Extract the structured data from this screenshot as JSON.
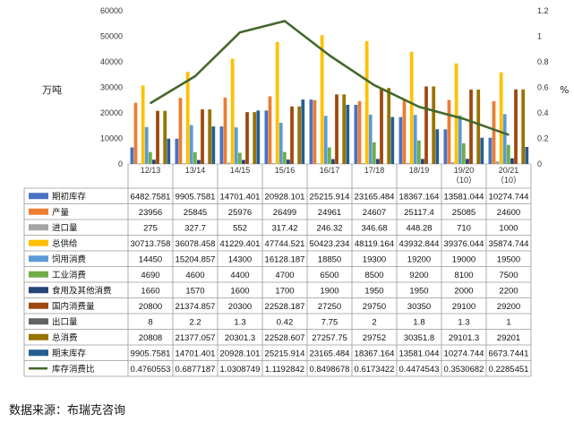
{
  "chart_data": {
    "type": "bar",
    "title": "",
    "units": {
      "left": "万吨",
      "right": "%"
    },
    "categories": [
      "12/13",
      "13/14",
      "14/15",
      "15/16",
      "16/17",
      "17/18",
      "18/19",
      "19/20\n（10）",
      "20/21\n（10）"
    ],
    "y_left": {
      "min": 0,
      "max": 60000,
      "ticks": [
        0,
        10000,
        20000,
        30000,
        40000,
        50000,
        60000
      ]
    },
    "y_right": {
      "min": 0,
      "max": 1.2,
      "ticks": [
        "0",
        "0.2",
        "0.4",
        "0.6",
        "0.8",
        "1",
        "1.2"
      ]
    },
    "grid": false,
    "bar_series": [
      {
        "name": "期初库存",
        "color": "#4a72c4",
        "values": [
          6482.7581,
          9905.7581,
          14701.401,
          20928.101,
          25215.914,
          23165.484,
          18367.164,
          13581.044,
          10274.744
        ],
        "labels": [
          "6482.7581",
          "9905.7581",
          "14701.401",
          "20928.101",
          "25215.914",
          "23165.484",
          "18367.164",
          "13581.044",
          "10274.744"
        ]
      },
      {
        "name": "产量",
        "color": "#ed7d31",
        "values": [
          23956,
          25845,
          25976,
          26499,
          24961,
          24607,
          25117.4,
          25085,
          24600
        ],
        "labels": [
          "23956",
          "25845",
          "25976",
          "26499",
          "24961",
          "24607",
          "25117.4",
          "25085",
          "24600"
        ]
      },
      {
        "name": "进口量",
        "color": "#a5a5a5",
        "values": [
          275,
          327.7,
          552,
          317.42,
          246.32,
          346.68,
          448.28,
          710,
          1000
        ],
        "labels": [
          "275",
          "327.7",
          "552",
          "317.42",
          "246.32",
          "346.68",
          "448.28",
          "710",
          "1000"
        ]
      },
      {
        "name": "总供给",
        "color": "#ffc000",
        "values": [
          30713.758,
          36078.458,
          41229.401,
          47744.521,
          50423.234,
          48119.164,
          43932.844,
          39376.044,
          35874.744
        ],
        "labels": [
          "30713.758",
          "36078.458",
          "41229.401",
          "47744.521",
          "50423.234",
          "48119.164",
          "43932.844",
          "39376.044",
          "35874.744"
        ]
      },
      {
        "name": "饲用消费",
        "color": "#5b9bd5",
        "values": [
          14450,
          15204.857,
          14300,
          16128.187,
          18850,
          19300,
          19200,
          19000,
          19500
        ],
        "labels": [
          "14450",
          "15204.857",
          "14300",
          "16128.187",
          "18850",
          "19300",
          "19200",
          "19000",
          "19500"
        ]
      },
      {
        "name": "工业消费",
        "color": "#70ad47",
        "values": [
          4690,
          4600,
          4400,
          4700,
          6500,
          8500,
          9200,
          8100,
          7500
        ],
        "labels": [
          "4690",
          "4600",
          "4400",
          "4700",
          "6500",
          "8500",
          "9200",
          "8100",
          "7500"
        ]
      },
      {
        "name": "食用及其他消费",
        "color": "#264478",
        "values": [
          1660,
          1570,
          1600,
          1700,
          1900,
          1950,
          1950,
          2000,
          2200
        ],
        "labels": [
          "1660",
          "1570",
          "1600",
          "1700",
          "1900",
          "1950",
          "1950",
          "2000",
          "2200"
        ]
      },
      {
        "name": "国内消费量",
        "color": "#9e480e",
        "values": [
          20800,
          21374.857,
          20300,
          22528.187,
          27250,
          29750,
          30350,
          29100,
          29200
        ],
        "labels": [
          "20800",
          "21374.857",
          "20300",
          "22528.187",
          "27250",
          "29750",
          "30350",
          "29100",
          "29200"
        ]
      },
      {
        "name": "出口量",
        "color": "#636363",
        "values": [
          8,
          2.2,
          1.3,
          0.42,
          7.75,
          2,
          1.8,
          1.3,
          1
        ],
        "labels": [
          "8",
          "2.2",
          "1.3",
          "0.42",
          "7.75",
          "2",
          "1.8",
          "1.3",
          "1"
        ]
      },
      {
        "name": "总消费",
        "color": "#997300",
        "values": [
          20808,
          21377.057,
          20301.3,
          22528.607,
          27257.75,
          29752,
          30351.8,
          29101.3,
          29201
        ],
        "labels": [
          "20808",
          "21377.057",
          "20301.3",
          "22528.607",
          "27257.75",
          "29752",
          "30351.8",
          "29101.3",
          "29201"
        ]
      },
      {
        "name": "期末库存",
        "color": "#255e91",
        "values": [
          9905.7581,
          14701.401,
          20928.101,
          25215.914,
          23165.484,
          18367.164,
          13581.044,
          10274.744,
          6673.7441
        ],
        "labels": [
          "9905.7581",
          "14701.401",
          "20928.101",
          "25215.914",
          "23165.484",
          "18367.164",
          "13581.044",
          "10274.744",
          "6673.7441"
        ]
      }
    ],
    "line_series": [
      {
        "name": "库存消费比",
        "color": "#43682b",
        "axis": "right",
        "values": [
          0.4760553,
          0.6877187,
          1.0308749,
          1.1192842,
          0.8498678,
          0.6173422,
          0.4474543,
          0.3530682,
          0.2285451
        ],
        "labels": [
          "0.4760553",
          "0.6877187",
          "1.0308749",
          "1.1192842",
          "0.8498678",
          "0.6173422",
          "0.4474543",
          "0.3530682",
          "0.2285451"
        ]
      }
    ]
  },
  "source_text": "数据来源：布瑞克咨询"
}
